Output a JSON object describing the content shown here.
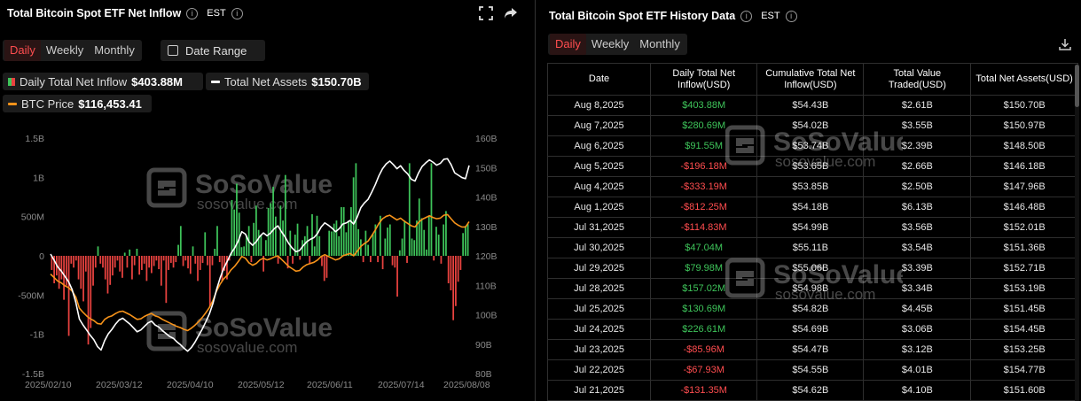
{
  "left": {
    "title": "Total Bitcoin Spot ETF Net Inflow",
    "timezone": "EST",
    "tabs": [
      "Daily",
      "Weekly",
      "Monthly"
    ],
    "active_tab": "Daily",
    "date_range_label": "Date Range",
    "legend": {
      "inflow_label": "Daily Total Net Inflow",
      "inflow_value": "$403.88M",
      "assets_label": "Total Net Assets",
      "assets_value": "$150.70B",
      "btc_label": "BTC Price",
      "btc_value": "$116,453.41"
    },
    "watermark": {
      "brand": "SoSoValue",
      "url": "sosovalue.com"
    }
  },
  "chart_data": {
    "type": "bar",
    "x_ticks": [
      "2025/02/10",
      "2025/03/12",
      "2025/04/10",
      "2025/05/12",
      "2025/06/11",
      "2025/07/14",
      "2025/08/08"
    ],
    "y_left_ticks": [
      "1.5B",
      "1B",
      "500M",
      "0",
      "-500M",
      "-1B",
      "-1.5B"
    ],
    "y_left_range": [
      -1500,
      1500
    ],
    "y_left_unit": "M",
    "y_right_ticks": [
      "160B",
      "150B",
      "140B",
      "130B",
      "120B",
      "110B",
      "100B",
      "90B",
      "80B"
    ],
    "y_right_range": [
      80,
      160
    ],
    "y_right_unit": "B",
    "series": [
      {
        "name": "Daily Total Net Inflow",
        "kind": "bar",
        "pos_color": "#3ec45a",
        "neg_color": "#e8423f",
        "values": [
          -180,
          -350,
          -250,
          -420,
          -300,
          -560,
          -380,
          -1020,
          -100,
          -150,
          -60,
          -300,
          -420,
          -580,
          -200,
          -1130,
          -920,
          -380,
          -150,
          120,
          -100,
          -150,
          -300,
          -480,
          -370,
          -250,
          -150,
          -60,
          -200,
          -280,
          40,
          -150,
          80,
          -300,
          -120,
          90,
          -240,
          -180,
          -100,
          -320,
          -150,
          -220,
          -130,
          -60,
          -170,
          -380,
          -60,
          -600,
          -180,
          -90,
          -150,
          -80,
          140,
          380,
          -130,
          -60,
          -160,
          -230,
          120,
          -100,
          -320,
          -180,
          -90,
          300,
          -120,
          -650,
          -120,
          90,
          380,
          -80,
          -320,
          -190,
          -300,
          -60,
          710,
          590,
          920,
          550,
          110,
          120,
          260,
          380,
          -80,
          420,
          640,
          330,
          260,
          -200,
          200,
          610,
          670,
          880,
          500,
          -100,
          640,
          450,
          1030,
          -160,
          320,
          -100,
          270,
          410,
          -50,
          200,
          250,
          380,
          -100,
          530,
          120,
          510,
          250,
          -130,
          -320,
          -280,
          320,
          310,
          410,
          450,
          250,
          620,
          620,
          300,
          450,
          620,
          1000,
          1180,
          340,
          210,
          -80,
          320,
          140,
          -80,
          280,
          400,
          -80,
          510,
          -170,
          220,
          360,
          400,
          -120,
          -150,
          -520,
          70,
          220,
          450,
          -90,
          1180,
          220,
          200,
          450,
          730,
          480,
          330,
          80,
          500,
          1180,
          -60,
          370,
          270,
          -100,
          400,
          570,
          -350,
          -440,
          -820,
          -640,
          -330,
          -180,
          290,
          380,
          404
        ]
      },
      {
        "name": "Total Net Assets",
        "kind": "line",
        "color": "#ffffff",
        "values": [
          120.6,
          118.5,
          116.2,
          114.8,
          113.0,
          111.2,
          108.5,
          104.2,
          98.5,
          96.5,
          94.8,
          93.0,
          91.5,
          89.2,
          88.0,
          91.2,
          93.5,
          95.0,
          96.8,
          98.2,
          98.8,
          97.8,
          96.8,
          95.5,
          94.2,
          94.8,
          96.0,
          97.2,
          97.8,
          96.5,
          95.8,
          94.6,
          93.6,
          92.6,
          92.0,
          90.8,
          89.8,
          88.6,
          87.6,
          88.8,
          90.6,
          92.8,
          95.0,
          97.5,
          100.2,
          103.8,
          108.5,
          112.5,
          115.8,
          118.2,
          120.8,
          122.6,
          125.0,
          128.2,
          127.4,
          124.8,
          123.6,
          124.8,
          126.6,
          127.8,
          126.8,
          127.8,
          129.2,
          130.2,
          128.2,
          126.4,
          124.2,
          122.6,
          121.4,
          121.8,
          123.4,
          124.8,
          125.6,
          126.2,
          127.6,
          129.8,
          131.2,
          130.4,
          129.4,
          128.2,
          129.2,
          130.8,
          131.2,
          132.0,
          130.8,
          133.2,
          136.4,
          138.0,
          139.2,
          141.6,
          144.2,
          147.2,
          149.6,
          151.2,
          152.2,
          151.0,
          149.6,
          150.6,
          149.0,
          147.8,
          146.0,
          145.4,
          148.2,
          150.4,
          151.6,
          152.6,
          151.8,
          150.8,
          151.4,
          152.8,
          153.0,
          151.0,
          148.2,
          147.4,
          146.6,
          146.2,
          150.7
        ]
      },
      {
        "name": "BTC Price",
        "kind": "line",
        "color": "#f7931a",
        "values": [
          113.8,
          112.6,
          111.4,
          110.8,
          109.8,
          109.2,
          108.0,
          106.0,
          102.2,
          100.8,
          99.6,
          98.6,
          98.0,
          97.0,
          96.8,
          98.4,
          99.2,
          99.6,
          100.4,
          101.0,
          101.2,
          100.6,
          100.0,
          99.2,
          98.4,
          98.6,
          99.4,
          100.0,
          100.4,
          99.6,
          99.2,
          98.4,
          97.8,
          97.2,
          96.6,
          96.0,
          95.6,
          95.0,
          94.6,
          95.4,
          96.4,
          97.6,
          99.0,
          100.6,
          102.4,
          104.8,
          108.0,
          110.4,
          112.2,
          113.4,
          115.2,
          116.4,
          118.0,
          119.8,
          119.2,
          117.6,
          116.8,
          117.4,
          118.6,
          119.2,
          118.6,
          119.0,
          119.6,
          120.0,
          118.8,
          117.6,
          116.4,
          115.6,
          114.8,
          115.0,
          116.2,
          117.0,
          117.4,
          117.8,
          118.6,
          119.8,
          120.4,
          119.8,
          119.2,
          118.6,
          119.0,
          120.0,
          120.4,
          120.8,
          120.0,
          121.6,
          123.2,
          124.2,
          125.0,
          126.8,
          128.8,
          131.0,
          132.6,
          133.4,
          133.8,
          133.0,
          132.2,
          132.8,
          131.8,
          131.0,
          130.2,
          129.8,
          131.4,
          132.4,
          133.0,
          133.6,
          133.0,
          132.6,
          132.8,
          133.8,
          134.0,
          132.6,
          131.2,
          130.4,
          129.8,
          129.8,
          131.6
        ]
      }
    ]
  },
  "right": {
    "title": "Total Bitcoin Spot ETF History Data",
    "timezone": "EST",
    "tabs": [
      "Daily",
      "Weekly",
      "Monthly"
    ],
    "active_tab": "Daily",
    "columns": [
      "Date",
      "Daily Total Net Inflow(USD)",
      "Cumulative Total Net Inflow(USD)",
      "Total Value Traded(USD)",
      "Total Net Assets(USD)"
    ],
    "rows": [
      [
        "Aug 8,2025",
        "$403.88M",
        "$54.43B",
        "$2.61B",
        "$150.70B"
      ],
      [
        "Aug 7,2025",
        "$280.69M",
        "$54.02B",
        "$3.55B",
        "$150.97B"
      ],
      [
        "Aug 6,2025",
        "$91.55M",
        "$53.74B",
        "$2.39B",
        "$148.50B"
      ],
      [
        "Aug 5,2025",
        "-$196.18M",
        "$53.65B",
        "$2.66B",
        "$146.18B"
      ],
      [
        "Aug 4,2025",
        "-$333.19M",
        "$53.85B",
        "$2.50B",
        "$147.96B"
      ],
      [
        "Aug 1,2025",
        "-$812.25M",
        "$54.18B",
        "$6.13B",
        "$146.48B"
      ],
      [
        "Jul 31,2025",
        "-$114.83M",
        "$54.99B",
        "$3.56B",
        "$152.01B"
      ],
      [
        "Jul 30,2025",
        "$47.04M",
        "$55.11B",
        "$3.54B",
        "$151.36B"
      ],
      [
        "Jul 29,2025",
        "$79.98M",
        "$55.06B",
        "$3.39B",
        "$152.71B"
      ],
      [
        "Jul 28,2025",
        "$157.02M",
        "$54.98B",
        "$3.34B",
        "$153.19B"
      ],
      [
        "Jul 25,2025",
        "$130.69M",
        "$54.82B",
        "$4.45B",
        "$151.45B"
      ],
      [
        "Jul 24,2025",
        "$226.61M",
        "$54.69B",
        "$3.06B",
        "$154.45B"
      ],
      [
        "Jul 23,2025",
        "-$85.96M",
        "$54.47B",
        "$3.12B",
        "$153.25B"
      ],
      [
        "Jul 22,2025",
        "-$67.93M",
        "$54.55B",
        "$4.01B",
        "$154.77B"
      ],
      [
        "Jul 21,2025",
        "-$131.35M",
        "$54.62B",
        "$4.10B",
        "$151.60B"
      ]
    ],
    "watermark": {
      "brand": "SoSoValue",
      "url": "sosovalue.com"
    }
  },
  "colors": {
    "positive": "#3ec45a",
    "negative": "#ff4d4f",
    "accent": "#ff4d4f",
    "background": "#000000"
  },
  "icons": [
    "info-icon",
    "fullscreen-icon",
    "share-icon",
    "calendar-icon",
    "download-icon"
  ]
}
